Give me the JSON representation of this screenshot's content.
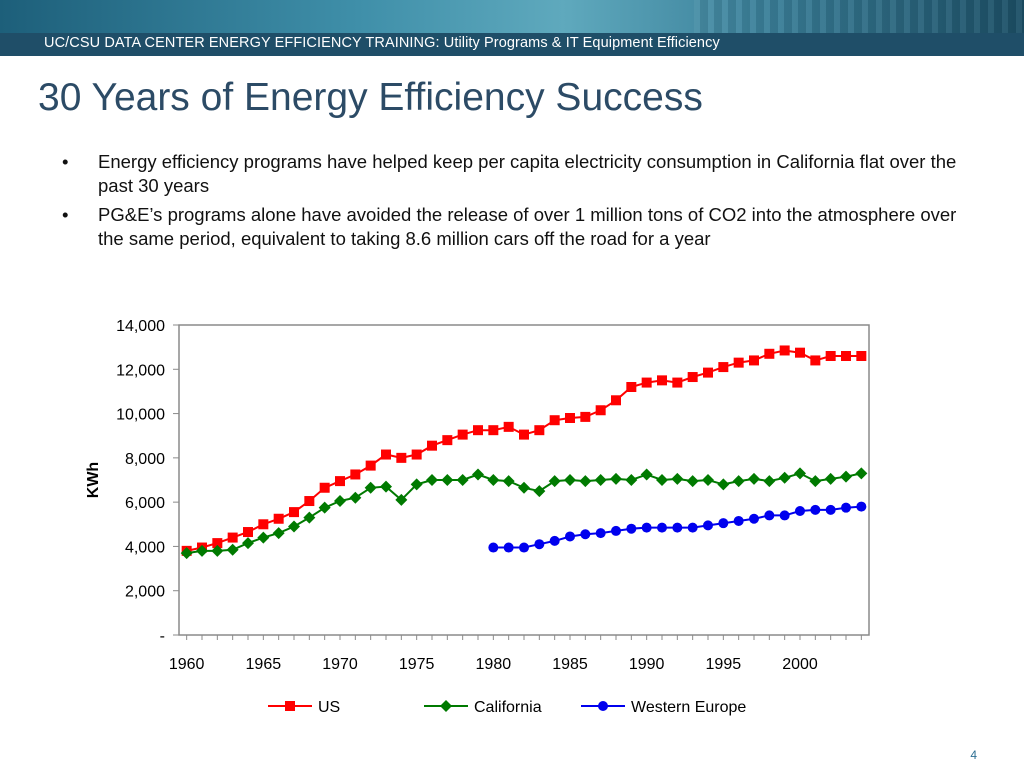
{
  "header": {
    "banner_prefix": "UC/CSU DATA CENTER ENERGY EFFICIENCY TRAINING:",
    "banner_suffix": " Utility Programs & IT Equipment Efficiency"
  },
  "slide": {
    "title": "30 Years of Energy Efficiency Success",
    "bullets": [
      "Energy efficiency programs have helped keep per capita electricity consumption in California flat over the past 30 years",
      "PG&E’s programs alone have avoided the release of over 1 million tons of CO2 into the atmosphere over the same period, equivalent to taking 8.6 million cars off the road for a year"
    ],
    "page_number": "4"
  },
  "chart_data": {
    "type": "line",
    "title": "",
    "xlabel": "",
    "ylabel": "KWh",
    "xlim": [
      1959.5,
      2004.5
    ],
    "ylim": [
      0,
      14000
    ],
    "x_ticks": [
      1960,
      1965,
      1970,
      1975,
      1980,
      1985,
      1990,
      1995,
      2000
    ],
    "x_tick_labels": [
      "1960",
      "1965",
      "1970",
      "1975",
      "1980",
      "1985",
      "1990",
      "1995",
      "2000"
    ],
    "y_ticks": [
      0,
      2000,
      4000,
      6000,
      8000,
      10000,
      12000,
      14000
    ],
    "y_tick_labels": [
      "-",
      "2,000",
      "4,000",
      "6,000",
      "8,000",
      "10,000",
      "12,000",
      "14,000"
    ],
    "grid": false,
    "legend_position": "bottom",
    "series": [
      {
        "name": "US",
        "color": "#ff0000",
        "marker": "square",
        "x": [
          1960,
          1961,
          1962,
          1963,
          1964,
          1965,
          1966,
          1967,
          1968,
          1969,
          1970,
          1971,
          1972,
          1973,
          1974,
          1975,
          1976,
          1977,
          1978,
          1979,
          1980,
          1981,
          1982,
          1983,
          1984,
          1985,
          1986,
          1987,
          1988,
          1989,
          1990,
          1991,
          1992,
          1993,
          1994,
          1995,
          1996,
          1997,
          1998,
          1999,
          2000,
          2001,
          2002,
          2003,
          2004
        ],
        "values": [
          3800,
          3950,
          4150,
          4400,
          4650,
          5000,
          5250,
          5550,
          6050,
          6650,
          6950,
          7250,
          7650,
          8150,
          8000,
          8150,
          8550,
          8800,
          9050,
          9250,
          9250,
          9400,
          9050,
          9250,
          9700,
          9800,
          9850,
          10150,
          10600,
          11200,
          11400,
          11500,
          11400,
          11650,
          11850,
          12100,
          12300,
          12400,
          12700,
          12850,
          12750,
          12400,
          12600,
          12600,
          12600
        ]
      },
      {
        "name": "California",
        "color": "#007a00",
        "marker": "diamond",
        "x": [
          1960,
          1961,
          1962,
          1963,
          1964,
          1965,
          1966,
          1967,
          1968,
          1969,
          1970,
          1971,
          1972,
          1973,
          1974,
          1975,
          1976,
          1977,
          1978,
          1979,
          1980,
          1981,
          1982,
          1983,
          1984,
          1985,
          1986,
          1987,
          1988,
          1989,
          1990,
          1991,
          1992,
          1993,
          1994,
          1995,
          1996,
          1997,
          1998,
          1999,
          2000,
          2001,
          2002,
          2003,
          2004
        ],
        "values": [
          3700,
          3800,
          3800,
          3850,
          4150,
          4400,
          4600,
          4900,
          5300,
          5750,
          6050,
          6200,
          6650,
          6700,
          6100,
          6800,
          7000,
          7000,
          7000,
          7250,
          7000,
          6950,
          6650,
          6500,
          6950,
          7000,
          6950,
          7000,
          7050,
          7000,
          7250,
          7000,
          7050,
          6950,
          7000,
          6800,
          6950,
          7050,
          6950,
          7100,
          7300,
          6950,
          7050,
          7150,
          7300
        ]
      },
      {
        "name": "Western Europe",
        "color": "#0000ee",
        "marker": "circle",
        "x": [
          1980,
          1981,
          1982,
          1983,
          1984,
          1985,
          1986,
          1987,
          1988,
          1989,
          1990,
          1991,
          1992,
          1993,
          1994,
          1995,
          1996,
          1997,
          1998,
          1999,
          2000,
          2001,
          2002,
          2003,
          2004
        ],
        "values": [
          3950,
          3950,
          3950,
          4100,
          4250,
          4450,
          4550,
          4600,
          4700,
          4800,
          4850,
          4850,
          4850,
          4850,
          4950,
          5050,
          5150,
          5250,
          5400,
          5400,
          5600,
          5650,
          5650,
          5750,
          5800
        ]
      }
    ]
  }
}
